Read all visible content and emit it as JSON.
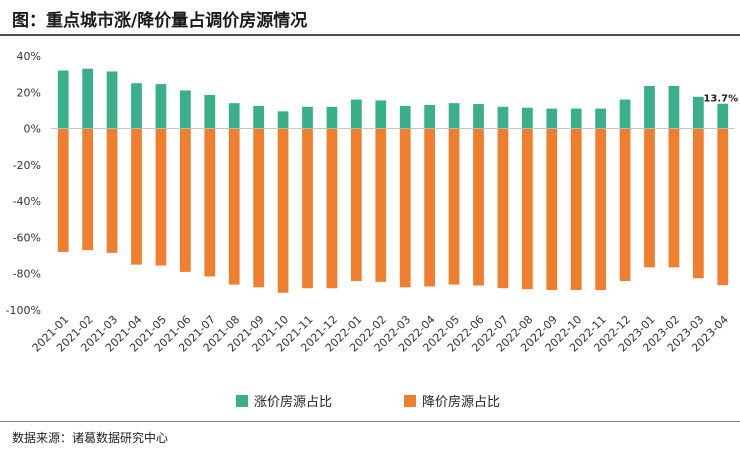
{
  "title": "图：重点城市涨/降价量占调价房源情况",
  "source": "数据来源：诸葛数据研究中心",
  "colors": {
    "up": "#3aaf8c",
    "down": "#ef7f2f"
  },
  "chart_data": {
    "type": "bar",
    "title": "图：重点城市涨/降价量占调价房源情况",
    "xlabel": "",
    "ylabel": "",
    "ylim": [
      -100,
      40
    ],
    "yticks": [
      40,
      20,
      0,
      -20,
      -40,
      -60,
      -80,
      -100
    ],
    "ytick_labels": [
      "40%",
      "20%",
      "0%",
      "-20%",
      "-40%",
      "-60%",
      "-80%",
      "-100%"
    ],
    "grid": false,
    "legend_position": "bottom",
    "categories": [
      "2021-01",
      "2021-02",
      "2021-03",
      "2021-04",
      "2021-05",
      "2021-06",
      "2021-07",
      "2021-08",
      "2021-09",
      "2021-10",
      "2021-11",
      "2021-12",
      "2022-01",
      "2022-02",
      "2022-03",
      "2022-04",
      "2022-05",
      "2022-06",
      "2022-07",
      "2022-08",
      "2022-09",
      "2022-10",
      "2022-11",
      "2022-12",
      "2023-01",
      "2023-02",
      "2023-03",
      "2023-04"
    ],
    "series": [
      {
        "name": "涨价房源占比",
        "values": [
          32,
          33,
          31.5,
          25,
          24.5,
          21,
          18.5,
          14,
          12.5,
          9.5,
          12,
          12,
          16,
          15.5,
          12.5,
          13,
          14,
          13.5,
          12,
          11.5,
          11,
          11,
          11,
          16,
          23.5,
          23.5,
          17.5,
          13.7
        ]
      },
      {
        "name": "降价房源占比",
        "values": [
          -68,
          -67,
          -68.5,
          -75,
          -75.5,
          -79,
          -81.5,
          -86,
          -87.5,
          -90.5,
          -88,
          -88,
          -84,
          -84.5,
          -87.5,
          -87,
          -86,
          -86.5,
          -88,
          -88.5,
          -89,
          -89,
          -89,
          -84,
          -76.5,
          -76.5,
          -82.5,
          -86.3
        ]
      }
    ],
    "annotations": [
      {
        "text": "13.7%",
        "category": "2023-04",
        "series": "涨价房源占比"
      }
    ]
  }
}
